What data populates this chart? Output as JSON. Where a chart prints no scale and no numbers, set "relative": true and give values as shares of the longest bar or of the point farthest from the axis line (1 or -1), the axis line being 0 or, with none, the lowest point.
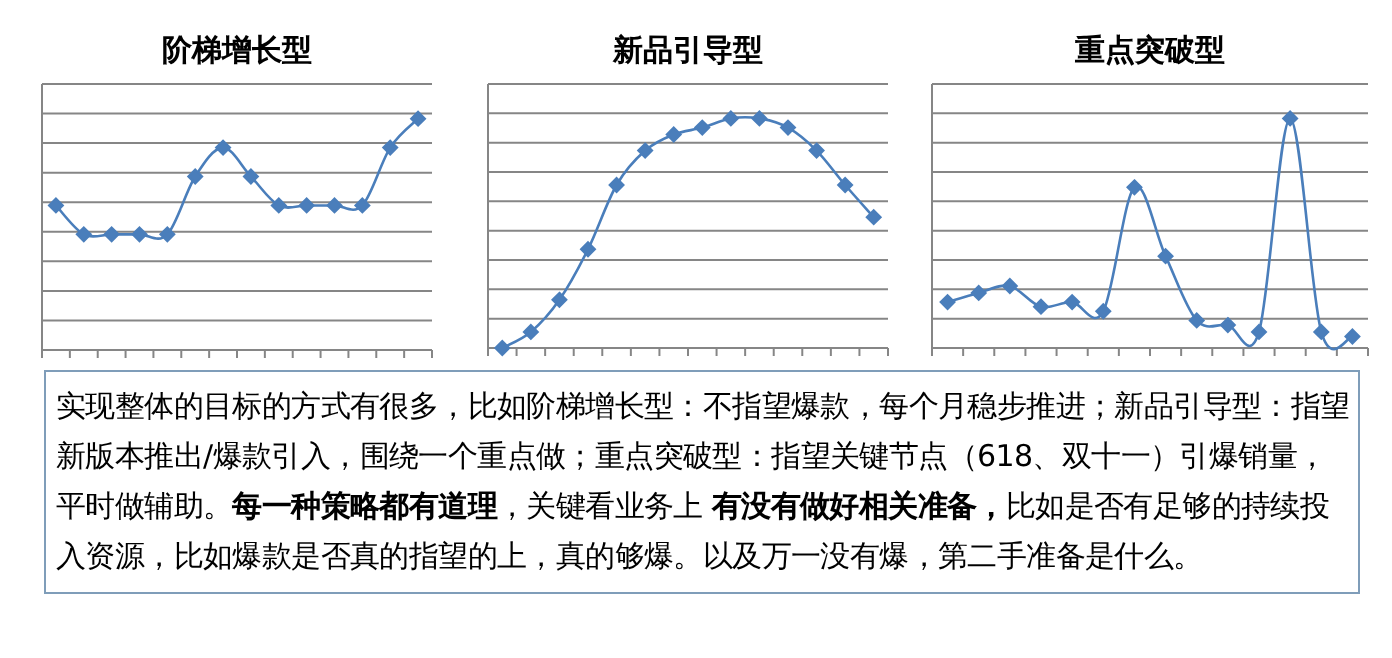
{
  "chart_data": [
    {
      "type": "line",
      "title": "阶梯增长型",
      "relative": true,
      "grid": "y",
      "marker": "diamond",
      "line_style": "solid",
      "categories": [
        null,
        null,
        null,
        null,
        null,
        null,
        null,
        null,
        null,
        null,
        null,
        null,
        null,
        null
      ],
      "series": [
        {
          "color": "#4a7ebb",
          "values": [
            0.625,
            0.5,
            0.5,
            0.5,
            0.5,
            0.75,
            0.875,
            0.75,
            0.625,
            0.625,
            0.625,
            0.625,
            0.875,
            1
          ]
        }
      ]
    },
    {
      "type": "line",
      "title": "新品引导型",
      "relative": true,
      "grid": "y",
      "marker": "diamond",
      "line_style": "solid",
      "categories": [
        null,
        null,
        null,
        null,
        null,
        null,
        null,
        null,
        null,
        null,
        null,
        null,
        null,
        null
      ],
      "series": [
        {
          "color": "#4a7ebb",
          "values": [
            0,
            0.07,
            0.21,
            0.43,
            0.71,
            0.86,
            0.93,
            0.96,
            1,
            1,
            0.96,
            0.86,
            0.71,
            0.57
          ]
        }
      ]
    },
    {
      "type": "line",
      "title": "重点突破型",
      "relative": true,
      "grid": "y",
      "marker": "diamond",
      "line_style": "solid",
      "categories": [
        null,
        null,
        null,
        null,
        null,
        null,
        null,
        null,
        null,
        null,
        null,
        null,
        null,
        null
      ],
      "series": [
        {
          "color": "#4a7ebb",
          "values": [
            0.2,
            0.24,
            0.27,
            0.18,
            0.2,
            0.16,
            0.7,
            0.4,
            0.12,
            0.1,
            0.07,
            1,
            0.07,
            0.05
          ]
        }
      ]
    },
    {
      "type": "other",
      "annotations": [
        "实现整体的目标的方式有很多，比如阶梯增长型：不指望爆款，每个月稳步推进；新品引导型：指望新版本推出/爆款引入，围绕一个重点做；重点突破型：指望关键节点（618、双十一）引爆销量，平时做辅助。**每一种策略都有道理**，关键看业务上 **有没有做好相关准备，**比如是否有足够的持续投入资源，比如爆款是否真的指望的上，真的够爆。以及万一没有爆，第二手准备是什么。"
      ]
    }
  ]
}
